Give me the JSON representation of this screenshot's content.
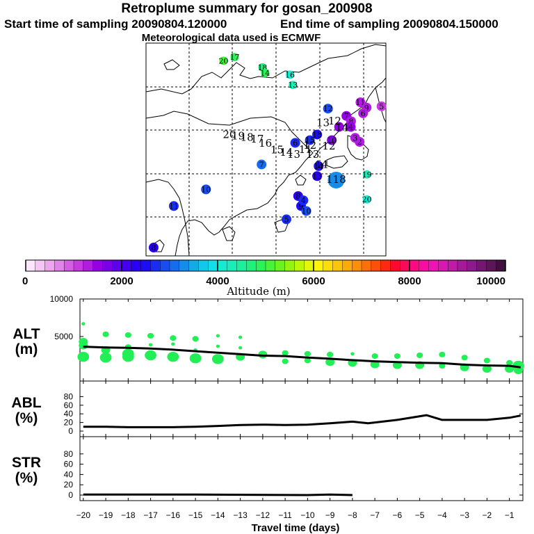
{
  "header": {
    "title": "Retroplume summary for gosan_200908",
    "start_label": "Start time of sampling 20090804.120000",
    "end_label": "End time of sampling 20090804.150000",
    "met_label": "Meteorological data used is ECMWF"
  },
  "map": {
    "markers": [
      {
        "label": "17",
        "lon": 105.3,
        "lat": 65.8,
        "alt": 4800
      },
      {
        "label": "20",
        "lon": 101.5,
        "lat": 64.7,
        "alt": 5100
      },
      {
        "label": "18",
        "lon": 114.8,
        "lat": 62.7,
        "alt": 4600
      },
      {
        "label": "14",
        "lon": 115.7,
        "lat": 61.0,
        "alt": 4900
      },
      {
        "label": "16",
        "lon": 124.2,
        "lat": 60.5,
        "alt": 4100
      },
      {
        "label": "13",
        "lon": 125.2,
        "lat": 57.4,
        "alt": 4300
      },
      {
        "label": "12",
        "lon": 137.2,
        "lat": 50.3,
        "alt": 2800
      },
      {
        "label": "11",
        "lon": 148.3,
        "lat": 52.2,
        "alt": 1300
      },
      {
        "label": "9",
        "lon": 150.4,
        "lat": 50.6,
        "alt": 1200
      },
      {
        "label": "5",
        "lon": 155.5,
        "lat": 51.0,
        "alt": 1000
      },
      {
        "label": "7",
        "lon": 143.5,
        "lat": 48.1,
        "alt": 1400
      },
      {
        "label": "8",
        "lon": 145.1,
        "lat": 46.5,
        "alt": 1300
      },
      {
        "label": "6",
        "lon": 149.2,
        "lat": 48.9,
        "alt": 1300
      },
      {
        "label": "1",
        "lon": 141.0,
        "lat": 44.8,
        "alt": 1500
      },
      {
        "label": "4",
        "lon": 145.0,
        "lat": 44.8,
        "alt": 1400
      },
      {
        "label": "2",
        "lon": 148.0,
        "lat": 40.3,
        "alt": 1200
      },
      {
        "label": "3",
        "lon": 146.5,
        "lat": 41.5,
        "alt": 1300
      },
      {
        "label": "10",
        "lon": 138.5,
        "lat": 40.8,
        "alt": 1600
      },
      {
        "label": "18",
        "lon": 133.5,
        "lat": 42.5,
        "alt": 2400
      },
      {
        "label": "15",
        "lon": 131.0,
        "lat": 40.8,
        "alt": 2600
      },
      {
        "label": "6",
        "lon": 126.0,
        "lat": 40.0,
        "alt": 2700
      },
      {
        "label": "14",
        "lon": 134.0,
        "lat": 33.0,
        "alt": 2400
      },
      {
        "label": "13",
        "lon": 133.5,
        "lat": 30.0,
        "alt": 2300
      },
      {
        "label": "118",
        "lon": 140.0,
        "lat": 28.8,
        "alt": 3200
      },
      {
        "label": "19",
        "lon": 150.5,
        "lat": 30.5,
        "alt": 4200
      },
      {
        "label": "20",
        "lon": 150.5,
        "lat": 23.0,
        "alt": 4100
      },
      {
        "label": "7",
        "lon": 114.5,
        "lat": 33.5,
        "alt": 3000
      },
      {
        "label": "10",
        "lon": 95.5,
        "lat": 26.0,
        "alt": 2800
      },
      {
        "label": "11",
        "lon": 84.5,
        "lat": 21.0,
        "alt": 2700
      },
      {
        "label": "8",
        "lon": 127.0,
        "lat": 24.0,
        "alt": 2200
      },
      {
        "label": "9",
        "lon": 128.0,
        "lat": 21.0,
        "alt": 2500
      },
      {
        "label": "10",
        "lon": 129.8,
        "lat": 19.5,
        "alt": 2900
      },
      {
        "label": "5",
        "lon": 123.0,
        "lat": 17.0,
        "alt": 2600
      },
      {
        "label": "4",
        "lon": 128.8,
        "lat": 22.7,
        "alt": 2700
      },
      {
        "label": "8",
        "lon": 77.6,
        "lat": 8.5,
        "alt": 2200
      }
    ],
    "track_labels": [
      {
        "text": "20",
        "lon": 103.5,
        "lat": 41.5
      },
      {
        "text": "19",
        "lon": 106.5,
        "lat": 41.0
      },
      {
        "text": "18",
        "lon": 109.5,
        "lat": 40.6
      },
      {
        "text": "17",
        "lon": 113.0,
        "lat": 40.1
      },
      {
        "text": "16",
        "lon": 115.8,
        "lat": 38.8
      },
      {
        "text": "15",
        "lon": 119.8,
        "lat": 36.8
      },
      {
        "text": "14",
        "lon": 123.0,
        "lat": 36.1
      },
      {
        "text": "13",
        "lon": 125.5,
        "lat": 35.5
      },
      {
        "text": "12",
        "lon": 131.0,
        "lat": 38.2
      },
      {
        "text": "11",
        "lon": 129.5,
        "lat": 37.0
      },
      {
        "text": "13",
        "lon": 132.0,
        "lat": 35.5
      },
      {
        "text": "12",
        "lon": 137.5,
        "lat": 38.0
      },
      {
        "text": "14",
        "lon": 135.0,
        "lat": 32.5
      },
      {
        "text": "13",
        "lon": 135.5,
        "lat": 45.0
      },
      {
        "text": "12",
        "lon": 139.5,
        "lat": 45.5
      },
      {
        "text": "14",
        "lon": 142.0,
        "lat": 43.5
      }
    ],
    "colorbar": {
      "ticks": [
        "0",
        "2000",
        "4000",
        "6000",
        "8000",
        "10000"
      ],
      "label": "Altitude (m)",
      "colors": [
        "#fbe6fb",
        "#f4c6f4",
        "#eca6ee",
        "#e184ea",
        "#d55ee4",
        "#c63bdf",
        "#b21ce0",
        "#9500e4",
        "#7b00e8",
        "#5f00ea",
        "#4200ee",
        "#2a00f4",
        "#1d0df4",
        "#1a2cf2",
        "#184df0",
        "#166cee",
        "#148cea",
        "#12abe8",
        "#10c9ea",
        "#12e0e6",
        "#14ecd2",
        "#18eeb8",
        "#1cf09c",
        "#20f07c",
        "#2cf25a",
        "#48f238",
        "#6cf21e",
        "#94f410",
        "#bcf60a",
        "#e2f80a",
        "#fcf40a",
        "#fcdc0a",
        "#fcc40a",
        "#fcaa0a",
        "#fc8e0a",
        "#fc700a",
        "#fc500a",
        "#fc2a0e",
        "#fc0a2e",
        "#fc0a5a",
        "#fc0a82",
        "#f80ca4",
        "#ee14b4",
        "#d818b0",
        "#c01aa6",
        "#a61a9a",
        "#8c1a8c",
        "#721870",
        "#5a1656",
        "#42103e"
      ]
    }
  },
  "chart_data": [
    {
      "type": "line",
      "title": "ALT (m)",
      "panel_title_1": "ALT",
      "panel_title_2": "(m)",
      "ylim": [
        0,
        10000
      ],
      "yticks": [
        "10000",
        "5000"
      ],
      "x": [
        -20,
        -19,
        -18,
        -17,
        -16,
        -15,
        -14,
        -13,
        -12,
        -11,
        -10,
        -9,
        -8,
        -7,
        -6,
        -5,
        -4,
        -3,
        -2,
        -1,
        -0.5
      ],
      "series": [
        {
          "name": "median altitude",
          "values": [
            3650,
            3550,
            3500,
            3400,
            3250,
            3050,
            2850,
            2650,
            2450,
            2400,
            2200,
            2050,
            1850,
            1700,
            1600,
            1500,
            1450,
            1250,
            1150,
            1100,
            900
          ]
        }
      ],
      "scatter_points": [
        {
          "x": -20.0,
          "y": 6700,
          "size": 1
        },
        {
          "x": -20.0,
          "y": 4300,
          "size": 3
        },
        {
          "x": -20.0,
          "y": 3800,
          "size": 3
        },
        {
          "x": -20.0,
          "y": 2300,
          "size": 4
        },
        {
          "x": -19.0,
          "y": 5300,
          "size": 2
        },
        {
          "x": -19.0,
          "y": 3200,
          "size": 3
        },
        {
          "x": -19.0,
          "y": 2200,
          "size": 4
        },
        {
          "x": -18.0,
          "y": 5200,
          "size": 2
        },
        {
          "x": -18.0,
          "y": 3600,
          "size": 2
        },
        {
          "x": -18.0,
          "y": 2700,
          "size": 4
        },
        {
          "x": -18.0,
          "y": 2300,
          "size": 4
        },
        {
          "x": -17.0,
          "y": 5100,
          "size": 2
        },
        {
          "x": -17.0,
          "y": 3900,
          "size": 1
        },
        {
          "x": -17.0,
          "y": 2500,
          "size": 4
        },
        {
          "x": -16.0,
          "y": 4800,
          "size": 2
        },
        {
          "x": -16.0,
          "y": 4000,
          "size": 1
        },
        {
          "x": -16.0,
          "y": 2300,
          "size": 4
        },
        {
          "x": -15.0,
          "y": 4700,
          "size": 2
        },
        {
          "x": -15.0,
          "y": 3200,
          "size": 1
        },
        {
          "x": -15.0,
          "y": 2100,
          "size": 4
        },
        {
          "x": -14.0,
          "y": 5100,
          "size": 1
        },
        {
          "x": -14.0,
          "y": 3700,
          "size": 1
        },
        {
          "x": -14.0,
          "y": 2000,
          "size": 4
        },
        {
          "x": -13.0,
          "y": 4900,
          "size": 1
        },
        {
          "x": -13.0,
          "y": 3500,
          "size": 1
        },
        {
          "x": -13.0,
          "y": 2300,
          "size": 3
        },
        {
          "x": -12.0,
          "y": 2600,
          "size": 3
        },
        {
          "x": -11.0,
          "y": 2800,
          "size": 2
        },
        {
          "x": -11.0,
          "y": 1700,
          "size": 2
        },
        {
          "x": -10.0,
          "y": 2700,
          "size": 2
        },
        {
          "x": -10.0,
          "y": 1800,
          "size": 2
        },
        {
          "x": -9.0,
          "y": 2600,
          "size": 2
        },
        {
          "x": -9.0,
          "y": 1600,
          "size": 3
        },
        {
          "x": -8.0,
          "y": 2700,
          "size": 1
        },
        {
          "x": -8.0,
          "y": 1500,
          "size": 3
        },
        {
          "x": -7.0,
          "y": 2400,
          "size": 2
        },
        {
          "x": -7.0,
          "y": 1300,
          "size": 3
        },
        {
          "x": -6.0,
          "y": 2400,
          "size": 2
        },
        {
          "x": -6.0,
          "y": 1200,
          "size": 3
        },
        {
          "x": -5.0,
          "y": 2500,
          "size": 2
        },
        {
          "x": -5.0,
          "y": 1200,
          "size": 3
        },
        {
          "x": -4.0,
          "y": 2600,
          "size": 2
        },
        {
          "x": -4.0,
          "y": 1100,
          "size": 2
        },
        {
          "x": -3.0,
          "y": 2200,
          "size": 2
        },
        {
          "x": -3.0,
          "y": 900,
          "size": 3
        },
        {
          "x": -2.0,
          "y": 1800,
          "size": 2
        },
        {
          "x": -2.0,
          "y": 700,
          "size": 3
        },
        {
          "x": -1.0,
          "y": 1500,
          "size": 2
        },
        {
          "x": -1.0,
          "y": 700,
          "size": 3
        },
        {
          "x": -0.6,
          "y": 1100,
          "size": 4
        },
        {
          "x": -0.6,
          "y": 500,
          "size": 3
        }
      ]
    },
    {
      "type": "line",
      "title": "ABL (%)",
      "panel_title_1": "ABL",
      "panel_title_2": "(%)",
      "ylim": [
        0,
        100
      ],
      "yticks": [
        "0",
        "20",
        "40",
        "60",
        "80"
      ],
      "x": [
        -20,
        -19,
        -18,
        -17,
        -16,
        -15,
        -14,
        -13,
        -12,
        -11,
        -10,
        -9,
        -8,
        -7.3,
        -6,
        -4.7,
        -4,
        -3,
        -2,
        -1,
        -0.5
      ],
      "series": [
        {
          "name": "ABL fraction",
          "values": [
            10,
            10,
            9,
            9,
            9,
            10,
            12,
            14,
            15,
            14,
            15,
            18,
            22,
            18,
            26,
            37,
            26,
            26,
            26,
            31,
            36
          ]
        }
      ]
    },
    {
      "type": "line",
      "title": "STR (%)",
      "panel_title_1": "STR",
      "panel_title_2": "(%)",
      "ylim": [
        0,
        100
      ],
      "yticks": [
        "0",
        "20",
        "40",
        "60",
        "80"
      ],
      "x": [
        -20,
        -17,
        -15,
        -10,
        -9,
        -8
      ],
      "series": [
        {
          "name": "stratosphere fraction",
          "values": [
            1,
            1,
            1,
            0,
            1,
            0
          ]
        }
      ]
    }
  ],
  "x_axis": {
    "ticks": [
      "−20",
      "−19",
      "−18",
      "−17",
      "−16",
      "−15",
      "−14",
      "−13",
      "−12",
      "−11",
      "−10",
      "−9",
      "−8",
      "−7",
      "−6",
      "−5",
      "−4",
      "−3",
      "−2",
      "−1"
    ],
    "tick_values": [
      -20,
      -19,
      -18,
      -17,
      -16,
      -15,
      -14,
      -13,
      -12,
      -11,
      -10,
      -9,
      -8,
      -7,
      -6,
      -5,
      -4,
      -3,
      -2,
      -1
    ],
    "label": "Travel time (days)"
  },
  "colors": {
    "line": "#000000",
    "scatter": "#22ee55",
    "grid": "#000000"
  }
}
